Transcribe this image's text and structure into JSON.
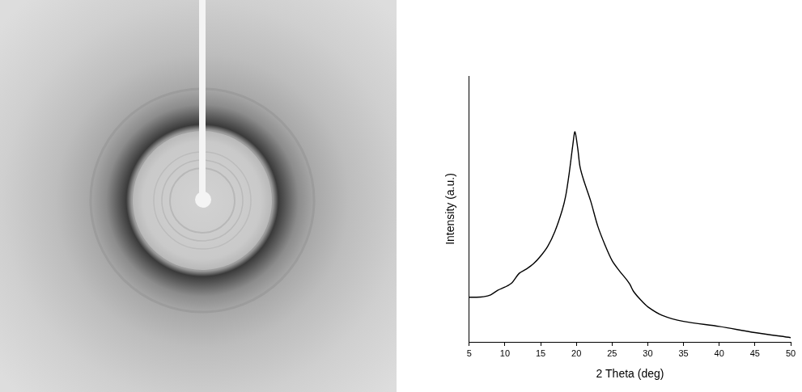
{
  "chart_data": {
    "type": "line",
    "x_label": "2 Theta (deg)",
    "y_label": "Intensity (a.u.)",
    "x": [
      5,
      6,
      7,
      8,
      9,
      10,
      11,
      12,
      13,
      14,
      15,
      16,
      17,
      18,
      18.5,
      19,
      19.5,
      19.8,
      20.2,
      20.5,
      21,
      22,
      23,
      24,
      25,
      26,
      27,
      27.5,
      28,
      29,
      30,
      32,
      35,
      40,
      45,
      50
    ],
    "values": [
      16.8,
      16.8,
      17,
      17.7,
      19.4,
      20.6,
      22.3,
      25.8,
      27.4,
      29.4,
      32.3,
      36,
      41.6,
      49.4,
      54.8,
      63.5,
      74,
      79,
      72.6,
      66,
      61,
      53,
      43.5,
      36.5,
      30.6,
      26.8,
      23.5,
      21.6,
      19,
      15.8,
      13.2,
      10,
      7.7,
      5.8,
      3.5,
      1.6
    ],
    "color": "#000000",
    "xlim": [
      5,
      50
    ],
    "xticks": [
      5,
      10,
      15,
      20,
      25,
      30,
      35,
      40,
      45,
      50
    ],
    "ylim": [
      0,
      100
    ],
    "tick_labels": "x",
    "grid": false
  }
}
